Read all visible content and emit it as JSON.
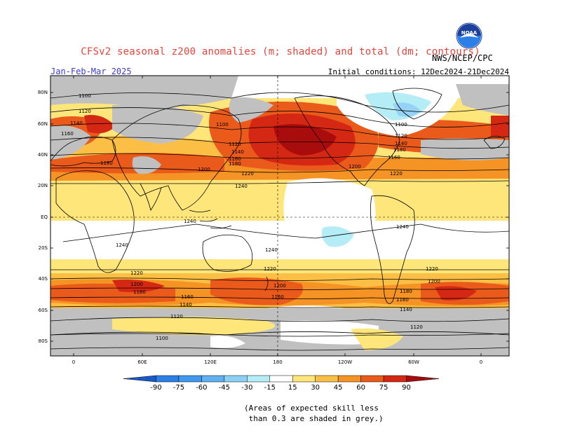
{
  "header": {
    "title": "CFSv2 seasonal z200 anomalies (m; shaded) and total (dm; contours)",
    "season": "Jan-Feb-Mar 2025",
    "initial_conditions": "Initial conditions: 12Dec2024-21Dec2024",
    "agency": "NWS/NCEP/CPC",
    "logo_text": "NOAA"
  },
  "map": {
    "lat_labels": [
      "80N",
      "60N",
      "40N",
      "20N",
      "EQ",
      "20S",
      "40S",
      "60S",
      "80S"
    ],
    "lon_labels": [
      "0",
      "60E",
      "120E",
      "180",
      "120W",
      "60W",
      "0"
    ],
    "contour_labels": [
      "1100",
      "1120",
      "1140",
      "1160",
      "1180",
      "1200",
      "1220",
      "1240"
    ],
    "colors": {
      "ocean": "#ffffff",
      "grey_mask": "#c0c0c0",
      "pos_15": "#ffe67a",
      "pos_30": "#fcbf45",
      "pos_45": "#f59424",
      "pos_60": "#ea5a1a",
      "pos_75": "#d52814",
      "pos_90": "#a80c0c",
      "neg_15": "#b4edf5",
      "neg_30": "#96d2f5"
    }
  },
  "colorbar": {
    "labels": [
      "-90",
      "-75",
      "-60",
      "-45",
      "-30",
      "-15",
      "15",
      "30",
      "45",
      "60",
      "75",
      "90"
    ],
    "colors": [
      "#1a59c9",
      "#2b7fe6",
      "#3f99ee",
      "#5fb1f0",
      "#8cd0f5",
      "#b4edf5",
      "#ffffff",
      "#ffe67a",
      "#fcbf45",
      "#f59424",
      "#ea5a1a",
      "#d52814",
      "#a80c0c"
    ]
  },
  "footnote": {
    "line1": "(Areas of expected skill less",
    "line2": " than 0.3 are shaded in grey.)"
  }
}
